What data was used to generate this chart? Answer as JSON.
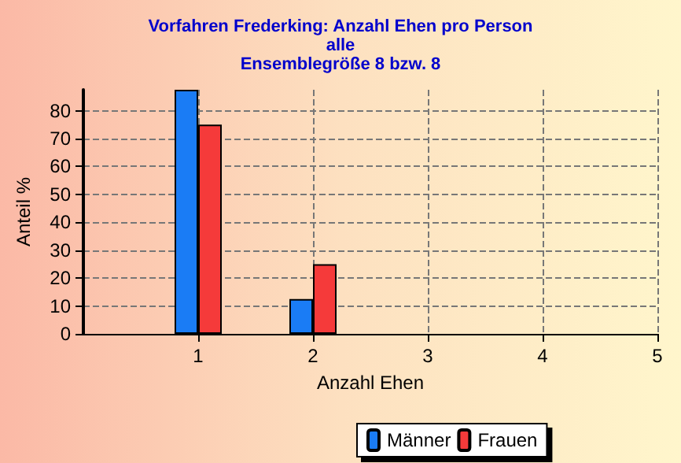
{
  "chart_data": {
    "type": "bar",
    "title": "Vorfahren Frederking: Anzahl Ehen pro Person\nalle\nEnsemblegröße 8 bzw. 8",
    "xlabel": "Anzahl Ehen",
    "ylabel": "Anteil %",
    "x": [
      0,
      1,
      2,
      3,
      4,
      5
    ],
    "series": [
      {
        "name": "Männer",
        "color": "#1a7cf5",
        "values": [
          0,
          87.5,
          12.5,
          0,
          0,
          0
        ]
      },
      {
        "name": "Frauen",
        "color": "#f53a3a",
        "values": [
          0,
          75,
          25,
          0,
          0,
          0
        ]
      }
    ],
    "xlim": [
      0,
      5
    ],
    "xticks": [
      1,
      2,
      3,
      4,
      5
    ],
    "ylim": [
      0,
      87.5
    ],
    "yticks": [
      0,
      10,
      20,
      30,
      40,
      50,
      60,
      70,
      80
    ],
    "grid": true,
    "legend": "bottom"
  }
}
